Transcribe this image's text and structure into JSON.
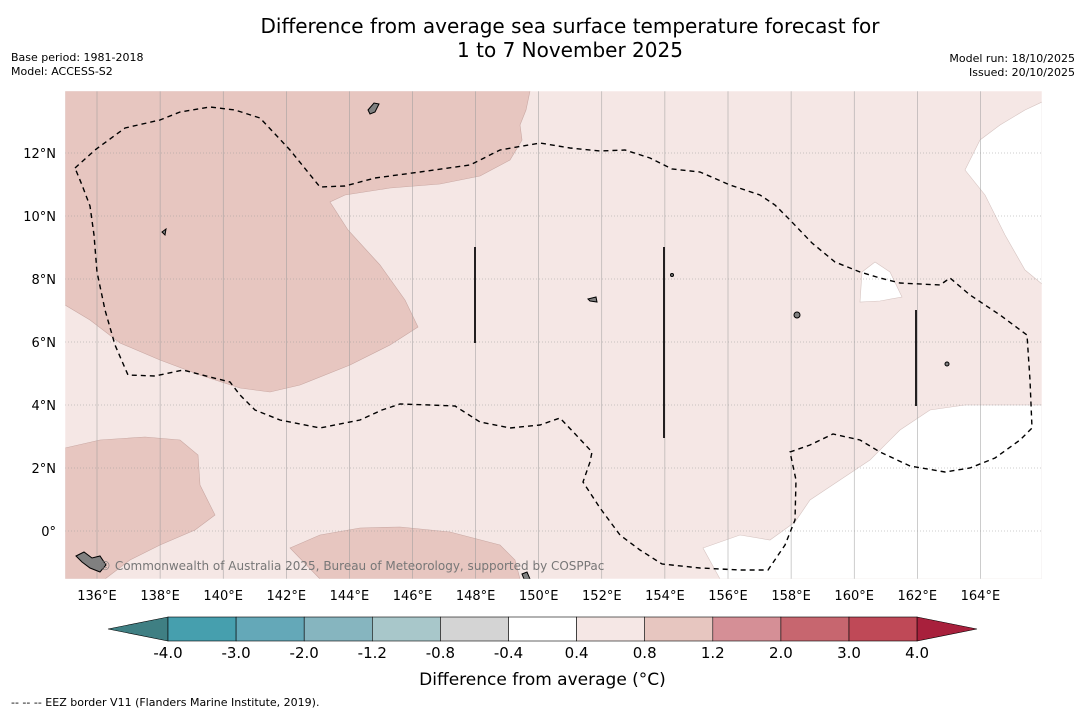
{
  "title_line1": "Difference from average sea surface temperature forecast for",
  "title_line2": "1 to 7 November 2025",
  "base_period": "Base period: 1981-2018",
  "model": "Model: ACCESS-S2",
  "model_run": "Model run: 18/10/2025",
  "issued": "Issued: 20/10/2025",
  "copyright": "© Commonwealth of Australia 2025, Bureau of Meteorology, supported by COSPPac",
  "x_ticks": [
    "136°E",
    "138°E",
    "140°E",
    "142°E",
    "144°E",
    "146°E",
    "148°E",
    "150°E",
    "152°E",
    "154°E",
    "156°E",
    "158°E",
    "160°E",
    "162°E",
    "164°E"
  ],
  "y_ticks": [
    "12°N",
    "10°N",
    "8°N",
    "6°N",
    "4°N",
    "2°N",
    "0°"
  ],
  "colorbar": {
    "title": "Difference from average (°C)",
    "labels": [
      "-4.0",
      "-3.0",
      "-2.0",
      "-1.2",
      "-0.8",
      "-0.4",
      "0.4",
      "0.8",
      "1.2",
      "2.0",
      "3.0",
      "4.0"
    ],
    "colors": [
      "#469fae",
      "#64a8b8",
      "#86b5bf",
      "#a8c7ca",
      "#d4d4d4",
      "#ffffff",
      "#f5e7e5",
      "#e7c6c0",
      "#d58f96",
      "#c7666f",
      "#bf4957"
    ],
    "under_color": "#3f7f83",
    "over_color": "#a8203c"
  },
  "map_colors": {
    "light_anomaly": "#f5e7e5",
    "medium_anomaly": "#e7c6c0",
    "neutral": "#ffffff",
    "land": "#808080"
  },
  "footnote": "-- -- -- EEZ border V11 (Flanders Marine Institute, 2019)."
}
